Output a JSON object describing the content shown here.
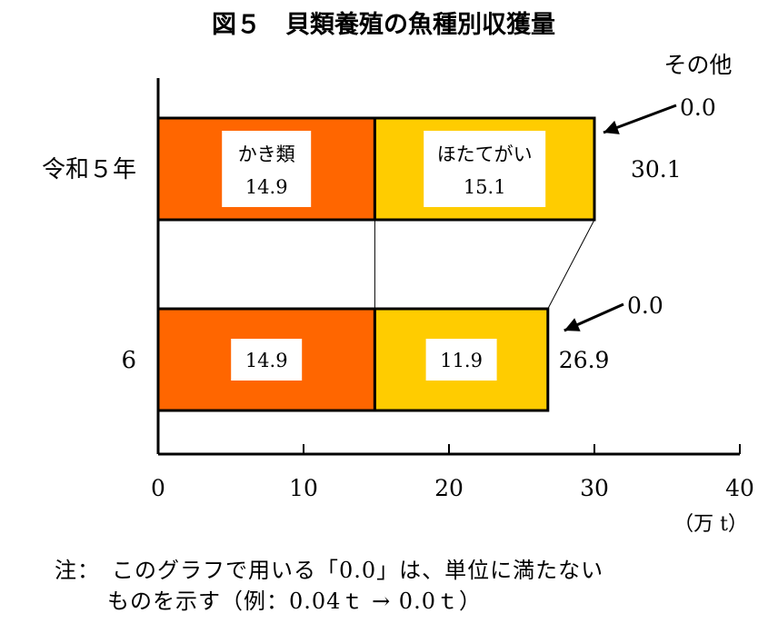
{
  "chart_data": {
    "type": "bar",
    "orientation": "horizontal",
    "stacked": true,
    "title": "図５　貝類養殖の魚種別収獲量",
    "categories": [
      "令和５年",
      "6"
    ],
    "series": [
      {
        "name": "かき類",
        "values": [
          14.9,
          14.9
        ],
        "labels": [
          "14.9",
          "14.9"
        ],
        "color": "#ff6600"
      },
      {
        "name": "ほたてがい",
        "values": [
          15.1,
          11.9
        ],
        "labels": [
          "15.1",
          "11.9"
        ],
        "color": "#ffcc00"
      },
      {
        "name": "その他",
        "values": [
          0.0,
          0.0
        ],
        "labels": [
          "0.0",
          "0.0"
        ]
      }
    ],
    "totals": [
      "30.1",
      "26.9"
    ],
    "xlim": [
      0,
      40
    ],
    "ticks": [
      "0",
      "10",
      "20",
      "30",
      "40"
    ],
    "unit": "（万 t）",
    "grid": false
  },
  "note": {
    "line1": "注：　このグラフで用いる「0.0」は、単位に満たない",
    "line2": "ものを示す（例：0.04ｔ → 0.0ｔ）"
  }
}
